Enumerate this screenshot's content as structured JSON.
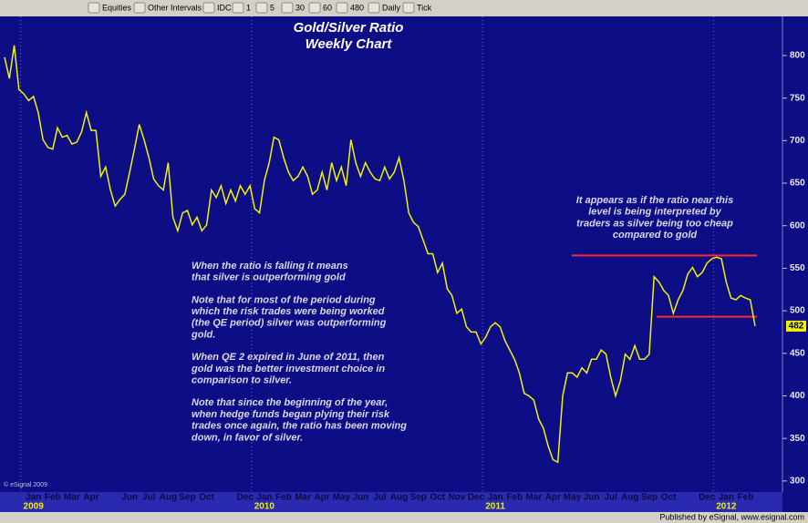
{
  "toolbar": {
    "items": [
      "Equities",
      "Other Intervals",
      "IDC",
      "1",
      "5",
      "30",
      "60",
      "480",
      "Daily",
      "Tick"
    ]
  },
  "chart_data": {
    "type": "line",
    "title": "Gold/Silver Ratio",
    "subtitle": "Weekly Chart",
    "categories": [
      null,
      null,
      null,
      null,
      null,
      null,
      "Jan",
      null,
      null,
      null,
      "Feb",
      null,
      null,
      null,
      "Mar",
      null,
      null,
      null,
      "Apr",
      null,
      null,
      null,
      null,
      null,
      null,
      null,
      "Jun",
      null,
      null,
      null,
      "Jul",
      null,
      null,
      null,
      "Aug",
      null,
      null,
      null,
      "Sep",
      null,
      null,
      null,
      "Oct",
      null,
      null,
      null,
      null,
      null,
      null,
      null,
      "Dec",
      null,
      null,
      null,
      "Jan",
      null,
      null,
      null,
      "Feb",
      null,
      null,
      null,
      "Mar",
      null,
      null,
      null,
      "Apr",
      null,
      null,
      null,
      "May",
      null,
      null,
      null,
      "Jun",
      null,
      null,
      null,
      "Jul",
      null,
      null,
      null,
      "Aug",
      null,
      null,
      null,
      "Sep",
      null,
      null,
      null,
      "Oct",
      null,
      null,
      null,
      "Nov",
      null,
      null,
      null,
      "Dec",
      null,
      null,
      null,
      "Jan",
      null,
      null,
      null,
      "Feb",
      null,
      null,
      null,
      "Mar",
      null,
      null,
      null,
      "Apr",
      null,
      null,
      null,
      "May",
      null,
      null,
      null,
      "Jun",
      null,
      null,
      null,
      "Jul",
      null,
      null,
      null,
      "Aug",
      null,
      null,
      null,
      "Sep",
      null,
      null,
      null,
      "Oct",
      null,
      null,
      null,
      null,
      null,
      null,
      null,
      "Dec",
      null,
      null,
      null,
      "Jan",
      null,
      null,
      null,
      "Feb",
      null,
      null
    ],
    "year_labels": [
      "2009",
      "2010",
      "2011",
      "2012"
    ],
    "series": [
      {
        "name": "Gold/Silver Ratio",
        "color": "#f2f200",
        "values": [
          798,
          773,
          812,
          760,
          755,
          747,
          752,
          733,
          701,
          692,
          690,
          715,
          704,
          706,
          696,
          698,
          710,
          733,
          712,
          712,
          658,
          669,
          642,
          623,
          631,
          637,
          663,
          690,
          719,
          701,
          680,
          655,
          647,
          642,
          674,
          610,
          594,
          615,
          618,
          601,
          610,
          594,
          601,
          642,
          633,
          647,
          626,
          642,
          629,
          647,
          637,
          647,
          620,
          615,
          653,
          674,
          704,
          701,
          680,
          663,
          653,
          658,
          669,
          658,
          637,
          642,
          663,
          642,
          674,
          653,
          669,
          647,
          701,
          674,
          658,
          674,
          663,
          655,
          653,
          669,
          655,
          663,
          680,
          653,
          615,
          604,
          599,
          583,
          567,
          567,
          545,
          556,
          526,
          518,
          497,
          502,
          481,
          475,
          475,
          461,
          469,
          481,
          486,
          481,
          465,
          454,
          443,
          427,
          403,
          400,
          395,
          373,
          362,
          341,
          325,
          322,
          400,
          427,
          427,
          422,
          433,
          427,
          443,
          443,
          454,
          449,
          422,
          400,
          418,
          449,
          443,
          459,
          443,
          443,
          449,
          540,
          534,
          524,
          518,
          497,
          513,
          524,
          543,
          551,
          540,
          545,
          556,
          561,
          563,
          561,
          534,
          515,
          513,
          518,
          515,
          513,
          482
        ]
      }
    ],
    "ylim": [
      287,
      846
    ],
    "yticks": [
      300,
      350,
      400,
      450,
      500,
      550,
      600,
      650,
      700,
      750,
      800
    ],
    "reference_lines": [
      {
        "value": 565,
        "color": "#ff2a2a"
      },
      {
        "value": 493,
        "color": "#ff2a2a"
      }
    ],
    "annotations": [
      {
        "lines": [
          "When the ratio is falling it means",
          "that silver is outperforming gold",
          "",
          "Note that for most of the period during",
          "which the risk trades were being worked",
          "(the QE period) silver was outperforming",
          "gold.",
          "",
          "When QE 2 expired in June of 2011, then",
          "gold was the better investment choice in",
          "comparison to silver.",
          "",
          "Note that since the beginning of the year,",
          "when hedge funds began plying their risk",
          "trades once again, the ratio has been moving",
          "down, in favor of silver."
        ]
      },
      {
        "lines": [
          "It appears as if the ratio near this",
          "level is being interpreted by",
          "traders as silver being too cheap",
          "compared to gold"
        ]
      }
    ],
    "copyright": "© eSignal 2009",
    "footer": "Published by eSignal, www.esignal.com"
  }
}
